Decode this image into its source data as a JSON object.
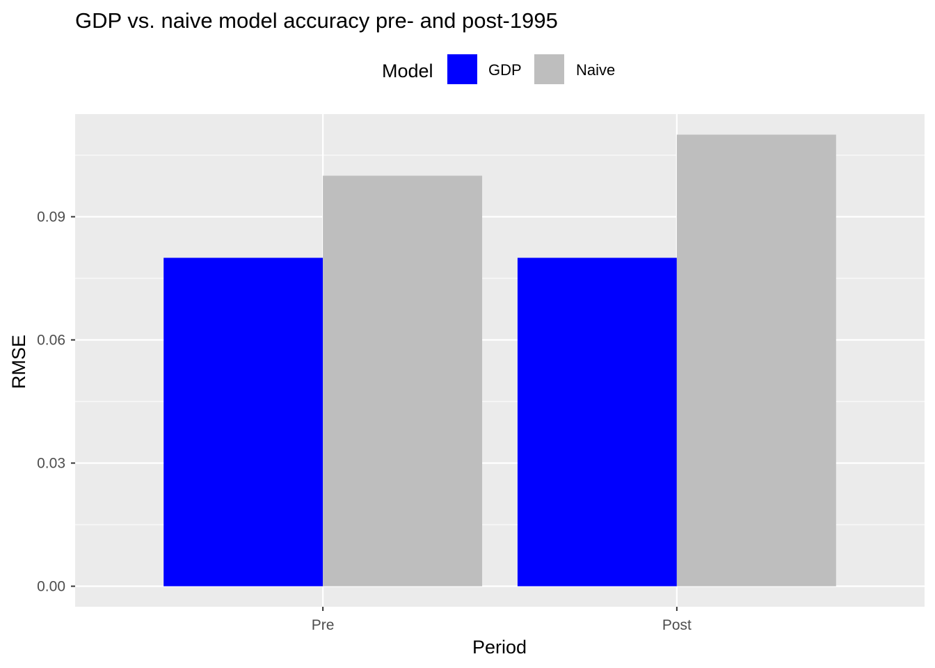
{
  "chart_data": {
    "type": "bar",
    "title": "GDP vs. naive model accuracy pre- and post-1995",
    "xlabel": "Period",
    "ylabel": "RMSE",
    "categories": [
      "Pre",
      "Post"
    ],
    "series": [
      {
        "name": "GDP",
        "values": [
          0.08,
          0.08
        ],
        "color": "#0000ff"
      },
      {
        "name": "Naive",
        "values": [
          0.1,
          0.11
        ],
        "color": "#bebebe"
      }
    ],
    "legend_title": "Model",
    "legend_position": "top",
    "ylim": [
      -0.005,
      0.115
    ],
    "yticks": [
      0.0,
      0.03,
      0.06,
      0.09
    ],
    "ytick_labels": [
      "0.00",
      "0.03",
      "0.06",
      "0.09"
    ],
    "grid": true,
    "panel_background": "#ebebeb",
    "grid_color": "#ffffff"
  }
}
